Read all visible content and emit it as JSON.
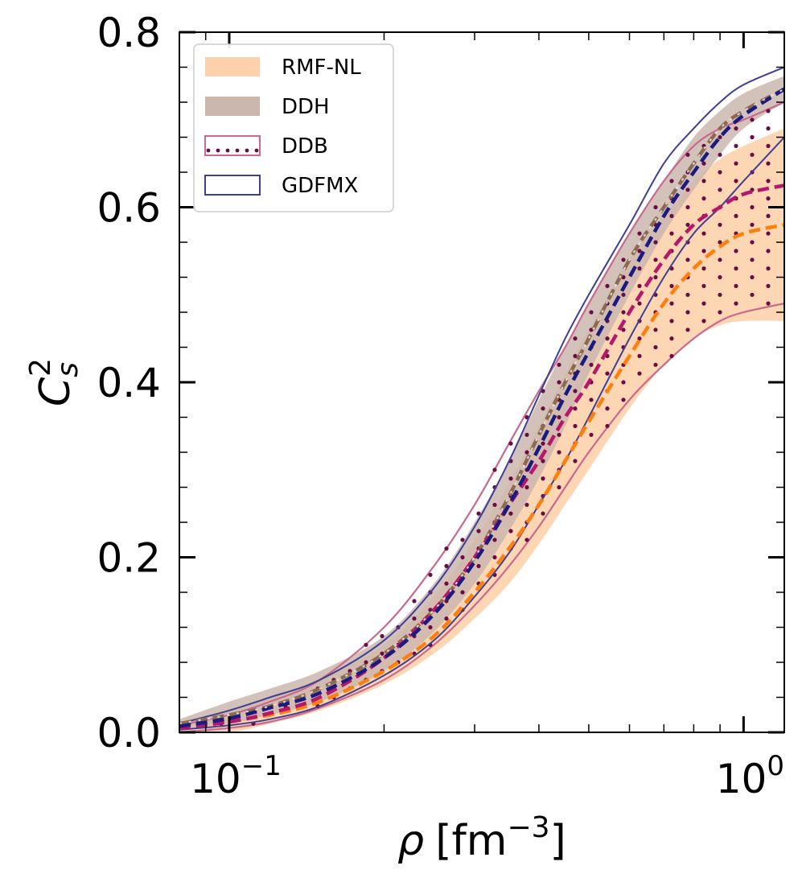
{
  "chart_data": {
    "type": "area",
    "xscale": "log",
    "xlim": [
      0.08,
      1.2
    ],
    "ylim": [
      0.0,
      0.8
    ],
    "xlabel_symbol": "ρ",
    "xlabel_unit": "[fm",
    "xlabel_exp": "−3",
    "xlabel_close": "]",
    "ylabel_base": "C",
    "ylabel_sub": "s",
    "ylabel_sup": "2",
    "y_ticks": [
      0.0,
      0.2,
      0.4,
      0.6,
      0.8
    ],
    "y_tick_labels": [
      "0.0",
      "0.2",
      "0.4",
      "0.6",
      "0.8"
    ],
    "x_ticks": [
      0.1,
      1.0
    ],
    "x_tick_base": [
      "10",
      "10"
    ],
    "x_tick_exp": [
      "−1",
      "0"
    ],
    "legend": [
      {
        "label": "RMF-NL",
        "style": "fill",
        "color": "#fdd1ab"
      },
      {
        "label": "DDH",
        "style": "fill",
        "color": "#cbb7ae"
      },
      {
        "label": "DDB",
        "style": "dots",
        "color": "#c9698f"
      },
      {
        "label": "GDFMX",
        "style": "outline",
        "color": "#3f3f96"
      }
    ],
    "series": [
      {
        "name": "RMF-NL",
        "color": "#fdd1ab",
        "line_color": "#ff7f0e",
        "x": [
          0.08,
          0.1,
          0.12,
          0.15,
          0.2,
          0.25,
          0.3,
          0.35,
          0.4,
          0.45,
          0.5,
          0.6,
          0.7,
          0.8,
          0.9,
          1.0,
          1.2
        ],
        "lower": [
          0.0,
          0.0,
          0.01,
          0.025,
          0.055,
          0.09,
          0.13,
          0.17,
          0.215,
          0.26,
          0.3,
          0.37,
          0.42,
          0.45,
          0.465,
          0.47,
          0.47
        ],
        "upper": [
          0.01,
          0.025,
          0.04,
          0.06,
          0.1,
          0.155,
          0.22,
          0.285,
          0.35,
          0.41,
          0.46,
          0.54,
          0.59,
          0.63,
          0.655,
          0.67,
          0.69
        ],
        "center": [
          0.005,
          0.013,
          0.02,
          0.035,
          0.07,
          0.11,
          0.16,
          0.21,
          0.26,
          0.31,
          0.355,
          0.43,
          0.49,
          0.53,
          0.555,
          0.57,
          0.58
        ]
      },
      {
        "name": "DDH",
        "color": "#cbb7ae",
        "line_color": "#8b6a52",
        "x": [
          0.08,
          0.1,
          0.12,
          0.15,
          0.2,
          0.25,
          0.3,
          0.35,
          0.4,
          0.45,
          0.5,
          0.6,
          0.7,
          0.8,
          0.9,
          1.0,
          1.2
        ],
        "lower": [
          0.005,
          0.01,
          0.02,
          0.035,
          0.07,
          0.115,
          0.17,
          0.23,
          0.29,
          0.35,
          0.41,
          0.5,
          0.57,
          0.62,
          0.66,
          0.69,
          0.72
        ],
        "upper": [
          0.015,
          0.035,
          0.05,
          0.07,
          0.11,
          0.17,
          0.24,
          0.31,
          0.38,
          0.44,
          0.49,
          0.57,
          0.63,
          0.68,
          0.71,
          0.73,
          0.75
        ],
        "center": [
          0.01,
          0.02,
          0.03,
          0.05,
          0.09,
          0.14,
          0.2,
          0.27,
          0.34,
          0.4,
          0.45,
          0.54,
          0.6,
          0.65,
          0.69,
          0.71,
          0.735
        ]
      },
      {
        "name": "DDB",
        "color": "#c9698f",
        "line_color": "#b5176b",
        "dot_color": "#6a0d45",
        "x": [
          0.08,
          0.1,
          0.12,
          0.15,
          0.2,
          0.25,
          0.3,
          0.35,
          0.4,
          0.45,
          0.5,
          0.6,
          0.7,
          0.8,
          0.9,
          1.0,
          1.2
        ],
        "lower": [
          0.0,
          0.005,
          0.012,
          0.028,
          0.06,
          0.1,
          0.145,
          0.19,
          0.235,
          0.28,
          0.32,
          0.38,
          0.42,
          0.45,
          0.47,
          0.48,
          0.49
        ],
        "upper": [
          0.008,
          0.02,
          0.035,
          0.06,
          0.12,
          0.19,
          0.26,
          0.33,
          0.39,
          0.44,
          0.49,
          0.57,
          0.63,
          0.67,
          0.69,
          0.7,
          0.72
        ],
        "center": [
          0.005,
          0.012,
          0.022,
          0.04,
          0.085,
          0.14,
          0.2,
          0.26,
          0.31,
          0.36,
          0.4,
          0.48,
          0.54,
          0.58,
          0.6,
          0.615,
          0.625
        ]
      },
      {
        "name": "GDFMX",
        "color": "#3f3f96",
        "line_color": "#1a1a80",
        "x": [
          0.08,
          0.1,
          0.12,
          0.15,
          0.2,
          0.25,
          0.3,
          0.35,
          0.4,
          0.45,
          0.5,
          0.6,
          0.7,
          0.8,
          0.9,
          1.0,
          1.2
        ],
        "lower": [
          0.003,
          0.008,
          0.015,
          0.03,
          0.065,
          0.105,
          0.155,
          0.205,
          0.26,
          0.31,
          0.36,
          0.45,
          0.52,
          0.57,
          0.6,
          0.63,
          0.68
        ],
        "upper": [
          0.01,
          0.025,
          0.04,
          0.06,
          0.105,
          0.165,
          0.235,
          0.31,
          0.385,
          0.45,
          0.5,
          0.58,
          0.65,
          0.69,
          0.72,
          0.74,
          0.76
        ],
        "center": [
          0.007,
          0.016,
          0.028,
          0.045,
          0.085,
          0.135,
          0.195,
          0.26,
          0.325,
          0.385,
          0.435,
          0.52,
          0.59,
          0.64,
          0.68,
          0.705,
          0.735
        ]
      }
    ]
  }
}
